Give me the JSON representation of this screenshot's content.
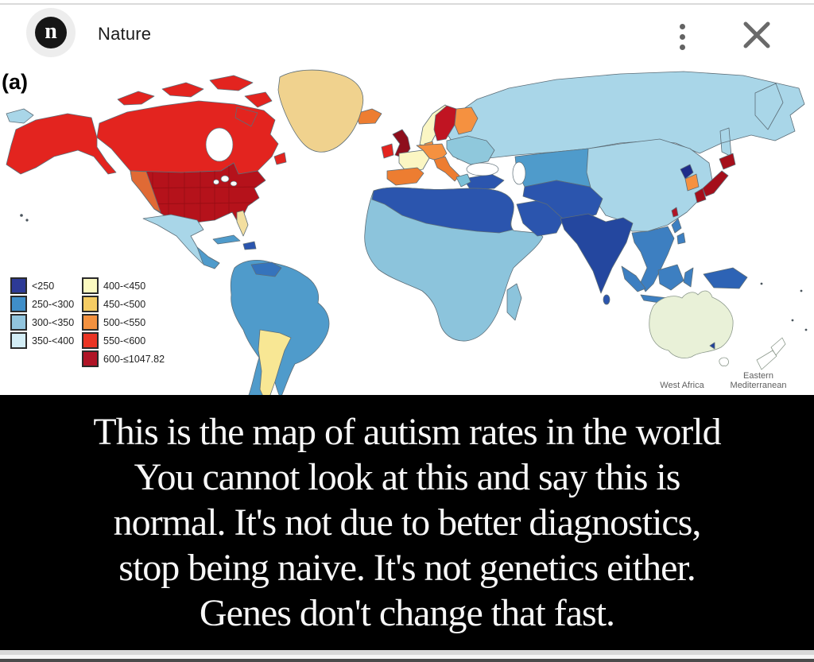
{
  "header": {
    "logo_letter": "n",
    "title": "Nature"
  },
  "figure": {
    "panel_label": "(a)"
  },
  "legend": {
    "column1": [
      {
        "label": "<250",
        "color": "#2d3a96"
      },
      {
        "label": "250-<300",
        "color": "#3f8ec8"
      },
      {
        "label": "300-<350",
        "color": "#92c5de"
      },
      {
        "label": "350-<400",
        "color": "#d3edf5"
      }
    ],
    "column2": [
      {
        "label": "400-<450",
        "color": "#fbf9c0"
      },
      {
        "label": "450-<500",
        "color": "#f5cc63"
      },
      {
        "label": "500-<550",
        "color": "#f3913f"
      },
      {
        "label": "550-<600",
        "color": "#ea3423"
      },
      {
        "label": "600-≤1047.82",
        "color": "#b01426"
      }
    ]
  },
  "map": {
    "region_colors": {
      "russia": "#a9d6e8",
      "central_asia": "#4f9bcb",
      "china": "#a9d6e8",
      "east_europe": "#8fc8dc",
      "turkey": "#2b55ae",
      "greece": "#7cc1d8",
      "norway": "#fbf6c3",
      "sweden": "#c01422",
      "finland": "#f59140",
      "denmark": "#f59140",
      "iceland": "#ed7d31",
      "uk": "#8e0e1c",
      "ireland": "#e3241f",
      "germany": "#f59140",
      "france": "#fbf6c3",
      "spain": "#ed7d31",
      "italy": "#ed7d31",
      "africa": "#8cc4dc",
      "north_africa": "#2b55ae",
      "madagascar": "#8cc4dc",
      "arabia": "#2b55ae",
      "iran_pakistan": "#2b55ae",
      "india": "#24479f",
      "sri_lanka": "#2b55ae",
      "se_asia": "#3d7fc1",
      "philippines": "#3d7fc1",
      "indonesia": "#3d7fc1",
      "new_guinea": "#2d63b5",
      "korea_north": "#1f2d8a",
      "korea_south": "#f59140",
      "japan": "#a50f1b",
      "taiwan": "#b01426",
      "canada": "#e3241f",
      "alaska": "#e3241f",
      "greenland": "#f0d28e",
      "usa": "#b5121b",
      "usa_west": "#e06a35",
      "florida": "#f3dfa0",
      "mexico": "#a9d6e8",
      "central_america": "#4f9bcb",
      "cuba": "#4f9bcb",
      "hispaniola": "#2b55ae",
      "south_america": "#4f9bcb",
      "venezuela": "#3573bc",
      "argentina": "#f8e794",
      "australia": "#e9f1d8",
      "tasmania": "#ffffff",
      "new_zealand": "#ffffff",
      "vic_marker": "#1f3f9e"
    }
  },
  "annotations": {
    "west_africa": "West Africa",
    "eastern_med_line1": "Eastern",
    "eastern_med_line2": "Mediterranean"
  },
  "caption": {
    "background": "#000000",
    "text_color": "#f7f7f7",
    "lines": [
      "This is the map of autism rates in the world",
      "You cannot look at this and say this is",
      "normal. It's not due to better diagnostics,",
      "stop being naive. It's not genetics either.",
      "Genes don't change that fast."
    ]
  },
  "icons": {
    "menu": "kebab-menu",
    "close": "close-x"
  }
}
